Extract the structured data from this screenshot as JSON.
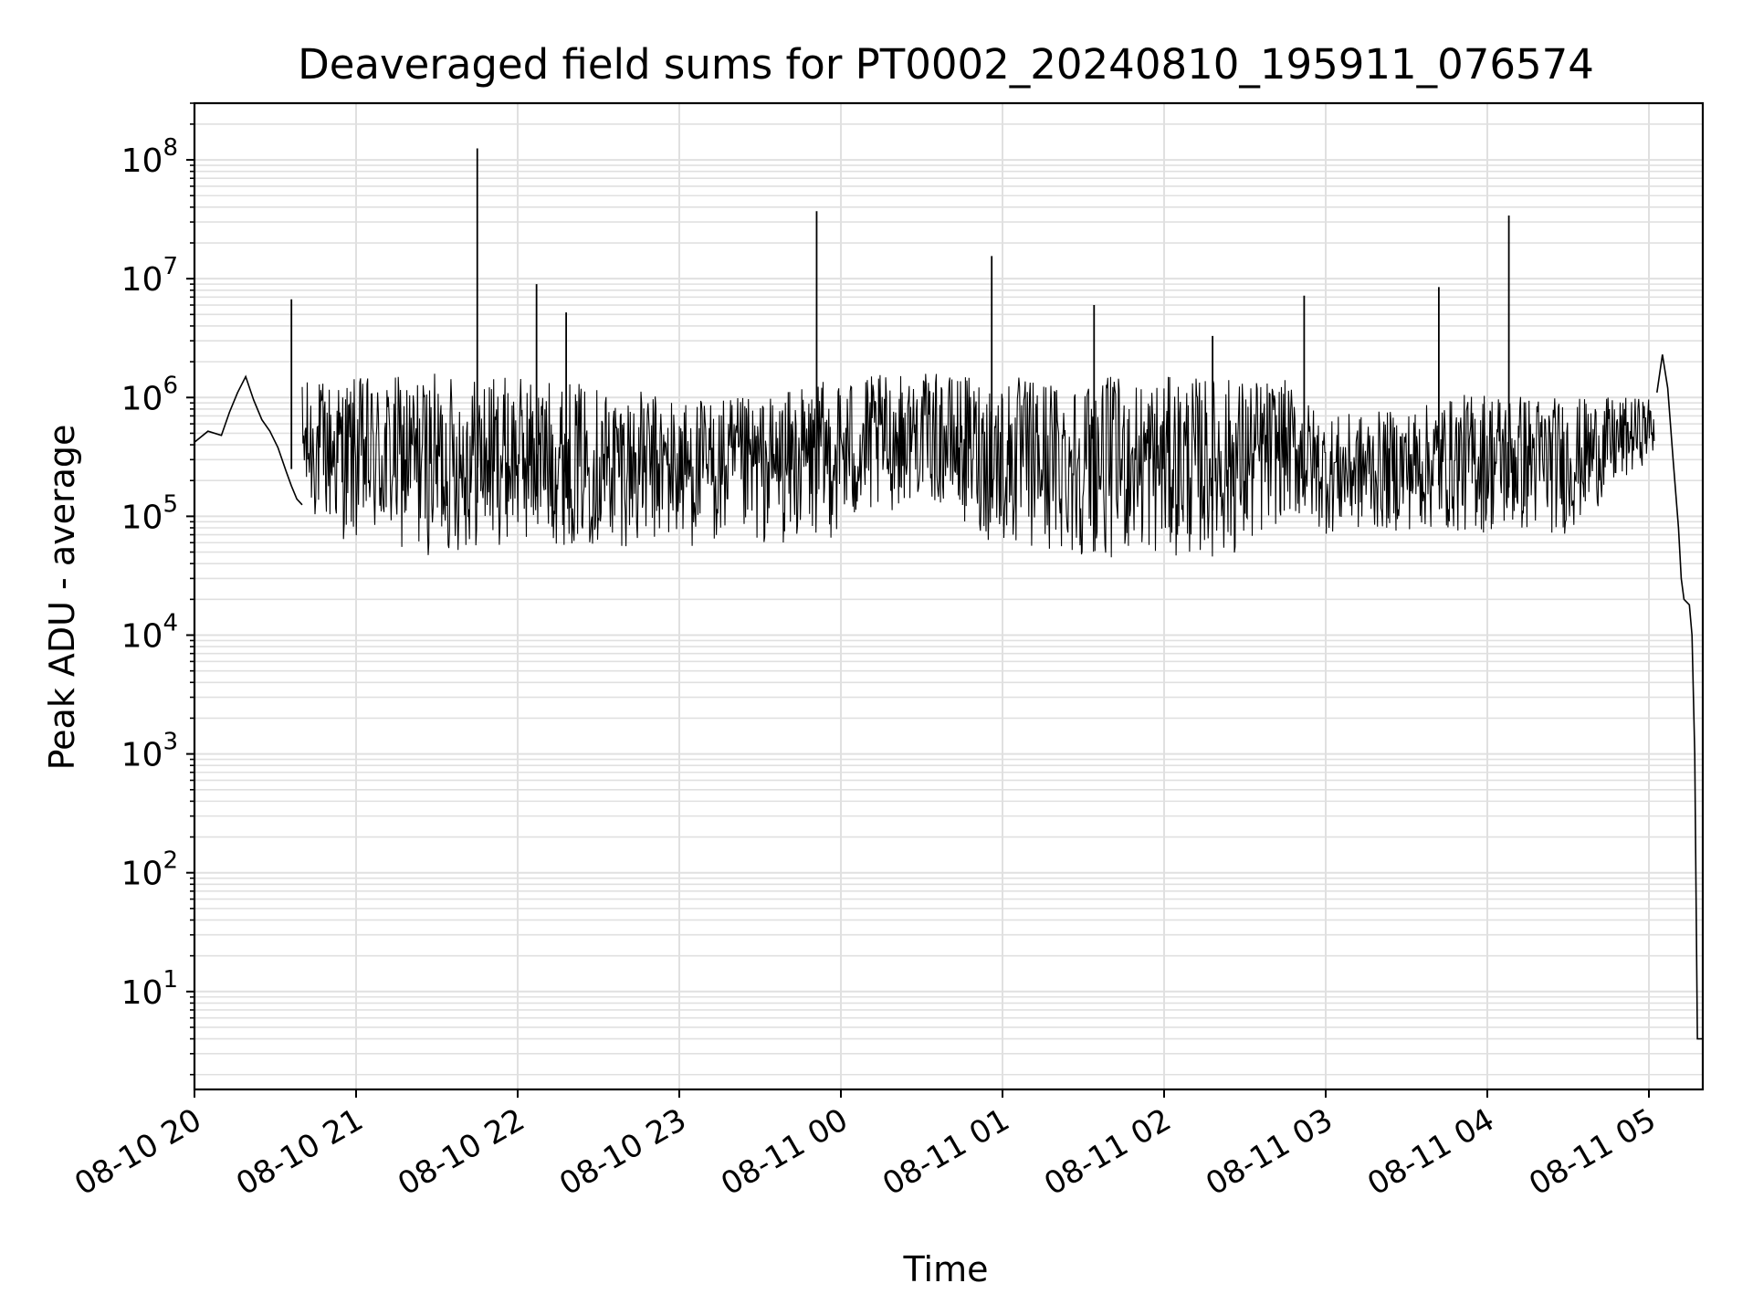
{
  "chart_data": {
    "type": "line",
    "title": "Deaveraged field sums for PT0002_20240810_195911_076574",
    "xlabel": "Time",
    "ylabel": "Peak ADU - average",
    "y_scale": "log",
    "ylim": [
      1.5,
      300000000
    ],
    "xlim": [
      "2024-08-10 20:00",
      "2024-08-11 05:20"
    ],
    "grid": "on (major and minor, light gray)",
    "legend": "none",
    "line_color": "#000000",
    "grid_color": "#e0e0e0",
    "x_ticks": [
      {
        "x": "2024-08-10 20:00",
        "label": "08-10 20"
      },
      {
        "x": "2024-08-10 21:00",
        "label": "08-10 21"
      },
      {
        "x": "2024-08-10 22:00",
        "label": "08-10 22"
      },
      {
        "x": "2024-08-10 23:00",
        "label": "08-10 23"
      },
      {
        "x": "2024-08-11 00:00",
        "label": "08-11 00"
      },
      {
        "x": "2024-08-11 01:00",
        "label": "08-11 01"
      },
      {
        "x": "2024-08-11 02:00",
        "label": "08-11 02"
      },
      {
        "x": "2024-08-11 03:00",
        "label": "08-11 03"
      },
      {
        "x": "2024-08-11 04:00",
        "label": "08-11 04"
      },
      {
        "x": "2024-08-11 05:00",
        "label": "08-11 05"
      }
    ],
    "y_ticks": [
      {
        "y": 10,
        "base": "10",
        "exp": "1"
      },
      {
        "y": 100,
        "base": "10",
        "exp": "2"
      },
      {
        "y": 1000,
        "base": "10",
        "exp": "3"
      },
      {
        "y": 10000,
        "base": "10",
        "exp": "4"
      },
      {
        "y": 100000,
        "base": "10",
        "exp": "5"
      },
      {
        "y": 1000000,
        "base": "10",
        "exp": "6"
      },
      {
        "y": 10000000,
        "base": "10",
        "exp": "7"
      },
      {
        "y": 100000000,
        "base": "10",
        "exp": "8"
      }
    ],
    "series": [
      {
        "points": [
          [
            "2024-08-10 20:00",
            420000
          ],
          [
            "2024-08-10 20:05",
            520000
          ],
          [
            "2024-08-10 20:10",
            480000
          ],
          [
            "2024-08-10 20:13",
            750000
          ],
          [
            "2024-08-10 20:16",
            1100000
          ],
          [
            "2024-08-10 20:19",
            1500000
          ],
          [
            "2024-08-10 20:22",
            950000
          ],
          [
            "2024-08-10 20:25",
            650000
          ],
          [
            "2024-08-10 20:28",
            520000
          ],
          [
            "2024-08-10 20:31",
            380000
          ],
          [
            "2024-08-10 20:34",
            240000
          ],
          [
            "2024-08-10 20:36",
            180000
          ],
          [
            "2024-08-10 20:38",
            140000
          ],
          [
            "2024-08-10 20:40",
            125000
          ],
          [
            "2024-08-10 20:45",
            1200000
          ],
          [
            "2024-08-10 21:00",
            1400000
          ],
          [
            "2024-08-10 21:30",
            1600000
          ],
          [
            "2024-08-10 22:00",
            1300000
          ],
          [
            "2024-08-10 22:30",
            900000
          ],
          [
            "2024-08-10 23:00",
            500000
          ],
          [
            "2024-08-10 23:30",
            600000
          ],
          [
            "2024-08-11 00:00",
            900000
          ],
          [
            "2024-08-11 00:30",
            1500000
          ],
          [
            "2024-08-11 01:00",
            1400000
          ],
          [
            "2024-08-11 01:30",
            1100000
          ],
          [
            "2024-08-11 02:00",
            1300000
          ],
          [
            "2024-08-11 02:30",
            1400000
          ],
          [
            "2024-08-11 03:00",
            280000
          ],
          [
            "2024-08-11 03:30",
            320000
          ],
          [
            "2024-08-11 04:00",
            600000
          ],
          [
            "2024-08-11 04:30",
            700000
          ],
          [
            "2024-08-11 05:00",
            600000
          ],
          [
            "2024-08-11 05:03",
            1100000
          ],
          [
            "2024-08-11 05:05",
            2300000
          ],
          [
            "2024-08-11 05:07",
            1200000
          ],
          [
            "2024-08-11 05:09",
            300000
          ],
          [
            "2024-08-11 05:11",
            80000
          ],
          [
            "2024-08-11 05:12",
            30000
          ],
          [
            "2024-08-11 05:13",
            20000
          ],
          [
            "2024-08-11 05:15",
            18000
          ],
          [
            "2024-08-11 05:16",
            10000
          ],
          [
            "2024-08-11 05:17",
            1000
          ],
          [
            "2024-08-11 05:18",
            4
          ],
          [
            "2024-08-11 05:20",
            4
          ]
        ]
      }
    ],
    "spikes": [
      [
        "2024-08-10 20:36",
        6700000
      ],
      [
        "2024-08-10 21:45",
        125000000
      ],
      [
        "2024-08-10 22:07",
        9000000
      ],
      [
        "2024-08-10 22:18",
        5200000
      ],
      [
        "2024-08-10 23:51",
        37000000
      ],
      [
        "2024-08-11 00:56",
        15500000
      ],
      [
        "2024-08-11 01:34",
        6000000
      ],
      [
        "2024-08-11 02:18",
        3300000
      ],
      [
        "2024-08-11 02:52",
        7200000
      ],
      [
        "2024-08-11 03:42",
        8500000
      ],
      [
        "2024-08-11 04:08",
        34000000
      ]
    ],
    "band": {
      "x_from": "2024-08-10 20:40",
      "x_to": "2024-08-11 05:02",
      "lows": [
        [
          "2024-08-10 20:40",
          100000
        ],
        [
          "2024-08-10 21:00",
          55000
        ],
        [
          "2024-08-10 21:30",
          45000
        ],
        [
          "2024-08-10 22:00",
          60000
        ],
        [
          "2024-08-10 22:30",
          55000
        ],
        [
          "2024-08-10 23:00",
          55000
        ],
        [
          "2024-08-10 23:30",
          55000
        ],
        [
          "2024-08-11 00:00",
          65000
        ],
        [
          "2024-08-11 00:30",
          150000
        ],
        [
          "2024-08-11 01:00",
          50000
        ],
        [
          "2024-08-11 01:30",
          45000
        ],
        [
          "2024-08-11 02:00",
          45000
        ],
        [
          "2024-08-11 02:30",
          45000
        ],
        [
          "2024-08-11 02:45",
          100000
        ],
        [
          "2024-08-11 03:00",
          70000
        ],
        [
          "2024-08-11 03:30",
          75000
        ],
        [
          "2024-08-11 04:00",
          70000
        ],
        [
          "2024-08-11 04:30",
          70000
        ],
        [
          "2024-08-11 05:00",
          300000
        ]
      ],
      "highs": [
        [
          "2024-08-10 20:40",
          1400000
        ],
        [
          "2024-08-10 21:00",
          1500000
        ],
        [
          "2024-08-10 21:30",
          1600000
        ],
        [
          "2024-08-10 22:00",
          1500000
        ],
        [
          "2024-08-10 22:30",
          1300000
        ],
        [
          "2024-08-10 23:00",
          1000000
        ],
        [
          "2024-08-10 23:30",
          1000000
        ],
        [
          "2024-08-11 00:00",
          1500000
        ],
        [
          "2024-08-11 00:30",
          1600000
        ],
        [
          "2024-08-11 01:00",
          1500000
        ],
        [
          "2024-08-11 01:30",
          1500000
        ],
        [
          "2024-08-11 02:00",
          1500000
        ],
        [
          "2024-08-11 02:30",
          1500000
        ],
        [
          "2024-08-11 02:45",
          1400000
        ],
        [
          "2024-08-11 03:00",
          700000
        ],
        [
          "2024-08-11 03:30",
          800000
        ],
        [
          "2024-08-11 04:00",
          1200000
        ],
        [
          "2024-08-11 04:30",
          1000000
        ],
        [
          "2024-08-11 05:00",
          1000000
        ]
      ]
    }
  }
}
